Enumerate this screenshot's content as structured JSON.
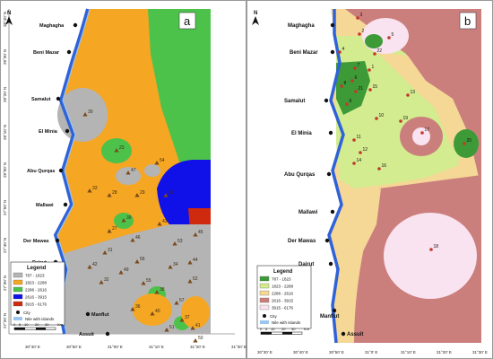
{
  "panel_a": {
    "label": "a",
    "north": "N",
    "cities": [
      "Maghagha",
      "Beni Mazar",
      "Samalut",
      "El Minia",
      "Abu Qurqas",
      "Mallawi",
      "Der Mawas",
      "Dairut",
      "Manflut",
      "Assuit"
    ],
    "lat_ticks": [
      "28°40' N",
      "28°30' N",
      "28°20' N",
      "28°10' N",
      "28°00' N",
      "27°50' N",
      "27°40' N",
      "27°30' N",
      "27°20' N"
    ],
    "lon_ticks": [
      "30°40' E",
      "30°50' E",
      "31°00' E",
      "31°10' E",
      "31°20' E",
      "31°30' E"
    ],
    "wells": [
      "30",
      "23",
      "47",
      "54",
      "33",
      "28",
      "29",
      "35",
      "39",
      "43",
      "27",
      "46",
      "53",
      "45",
      "31",
      "56",
      "44",
      "42",
      "49",
      "34",
      "32",
      "55",
      "52",
      "38",
      "57",
      "36",
      "40",
      "37",
      "51",
      "41",
      "50"
    ],
    "legend": {
      "title": "Legend",
      "classes": [
        {
          "range": "787 - 1823",
          "color": "#b4b4b4"
        },
        {
          "range": "1823 - 2288",
          "color": "#f5a623"
        },
        {
          "range": "2288 - 2616",
          "color": "#4cc24a"
        },
        {
          "range": "2616 - 3915",
          "color": "#1010e8"
        },
        {
          "range": "3915 - 6176",
          "color": "#cf2a0e"
        }
      ],
      "city_label": "City",
      "nile_label": "Nile with islands"
    },
    "scale": {
      "ticks": [
        "0",
        "5",
        "10",
        "20",
        "30"
      ],
      "unit": "Km"
    }
  },
  "panel_b": {
    "label": "b",
    "north": "N",
    "cities": [
      "Maghagha",
      "Beni Mazar",
      "Samalut",
      "El Minia",
      "Abu Qurqas",
      "Mallawi",
      "Der Mawas",
      "Dairut",
      "Manflut",
      "Assuit"
    ],
    "lon_ticks": [
      "30°30' E",
      "30°40' E",
      "30°50' E",
      "31°0' E",
      "31°10' E",
      "31°20' E",
      "31°30' E"
    ],
    "wells": [
      "3",
      "2",
      "5",
      "4",
      "22",
      "7",
      "1",
      "6",
      "8",
      "21",
      "15",
      "9",
      "13",
      "10",
      "19",
      "17",
      "11",
      "20",
      "12",
      "14",
      "16",
      "18"
    ],
    "legend": {
      "title": "Legend",
      "classes": [
        {
          "range": "787 - 1823",
          "color": "#3d9a37"
        },
        {
          "range": "1823 - 2288",
          "color": "#d3ec8f"
        },
        {
          "range": "2288 - 2616",
          "color": "#f5d796"
        },
        {
          "range": "2616 - 3915",
          "color": "#cb7f7d"
        },
        {
          "range": "3915 - 6176",
          "color": "#f9e3f0"
        }
      ],
      "city_label": "City",
      "nile_label": "Nile with islands"
    },
    "scale": {
      "ticks": [
        "0",
        "5",
        "10",
        "20",
        "30"
      ],
      "unit": "Km"
    }
  },
  "colors": {
    "nile": "#2f62d8",
    "nile_light": "#9cc6ef",
    "well": "#c0392b",
    "well_a": "#7a4a1b"
  }
}
